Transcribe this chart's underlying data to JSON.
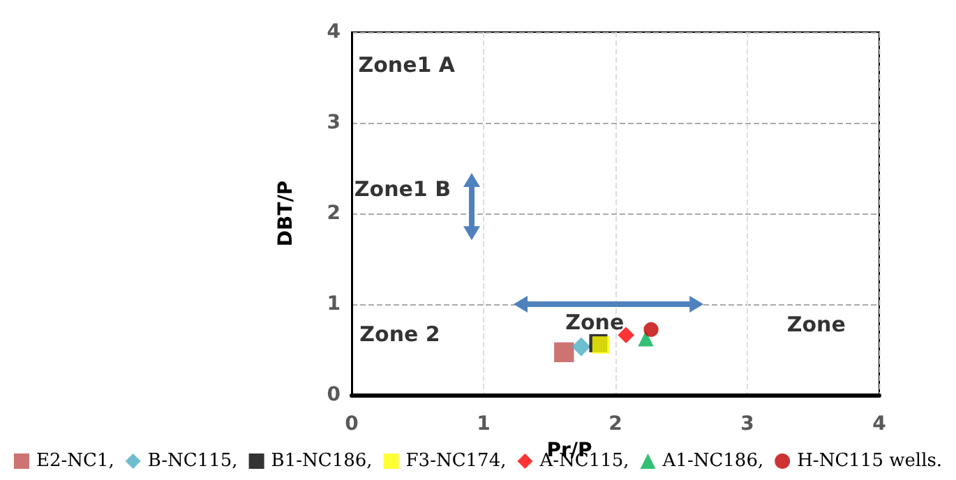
{
  "chart_data": {
    "type": "scatter",
    "xlabel": "Pr/P",
    "ylabel": "DBT/P",
    "xlim": [
      0,
      4
    ],
    "xticks": [
      0,
      1,
      2,
      3,
      4
    ],
    "ylim": [
      0,
      4
    ],
    "yticks": [
      0,
      1,
      2,
      3,
      4
    ],
    "grid": true,
    "legend": "bottom",
    "series": [
      {
        "name": "E2-NC1,",
        "color": "#c0504d",
        "marker": "square",
        "x": [
          1.61
        ],
        "values": [
          0.47
        ]
      },
      {
        "name": "B-NC115,",
        "color": "#4bacc6",
        "marker": "diamond",
        "x": [
          1.74
        ],
        "values": [
          0.53
        ]
      },
      {
        "name": "B1-NC186,",
        "color": "#000000",
        "marker": "square",
        "x": [
          1.87
        ],
        "values": [
          0.57
        ]
      },
      {
        "name": "F3-NC174,",
        "color": "#ffff00",
        "marker": "square",
        "x": [
          1.89
        ],
        "values": [
          0.55
        ]
      },
      {
        "name": "A-NC115,",
        "color": "#ff0000",
        "marker": "diamond",
        "x": [
          2.08
        ],
        "values": [
          0.66
        ]
      },
      {
        "name": "A1-NC186,",
        "color": "#00b050",
        "marker": "triangle",
        "x": [
          2.23
        ],
        "values": [
          0.62
        ]
      },
      {
        "name": "H-NC115 wells.",
        "color": "#c00000",
        "marker": "circle",
        "x": [
          2.27
        ],
        "values": [
          0.72
        ]
      }
    ],
    "annotations": [
      "Zone1 A",
      "Zone1 B",
      "Zone 2",
      "Zone",
      "Zone"
    ]
  }
}
